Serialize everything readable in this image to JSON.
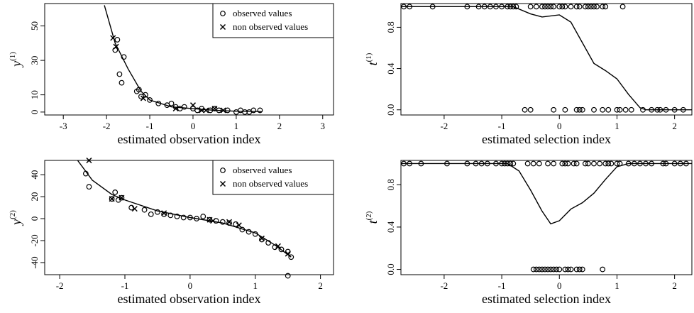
{
  "chart_data": [
    {
      "type": "scatter",
      "xlabel": "estimated observation index",
      "ylabel": "y",
      "ylabel_sup": "(1)",
      "xlim": [
        -3.43,
        3.25
      ],
      "ylim": [
        -1.7,
        63
      ],
      "xticks": [
        -3,
        -2,
        -1,
        0,
        1,
        2,
        3
      ],
      "yticks": [
        0,
        10,
        30,
        50
      ],
      "legend": "upper right",
      "series": [
        {
          "name": "observed values",
          "marker": "circle",
          "color": "#000",
          "x": [
            -1.75,
            -1.8,
            -1.6,
            -1.7,
            -1.65,
            -1.3,
            -1.25,
            -1.2,
            -1.1,
            -1.0,
            -0.8,
            -0.6,
            -0.5,
            -0.4,
            -0.3,
            -0.2,
            0,
            0.1,
            0.2,
            0.4,
            0.5,
            0.6,
            0.8,
            1.0,
            1.1,
            1.2,
            1.3,
            1.4,
            1.55
          ],
          "values": [
            42,
            36,
            32,
            22,
            17,
            12,
            13,
            9,
            10,
            7,
            5,
            4,
            5,
            3,
            2,
            3,
            2,
            1,
            2,
            1,
            2,
            1,
            1,
            0,
            1,
            0,
            0,
            1,
            1
          ]
        },
        {
          "name": "non observed values",
          "marker": "cross",
          "color": "#000",
          "x": [
            -1.85,
            -1.78,
            -1.15,
            -0.4,
            0,
            0.2,
            0.3,
            0.5,
            0.7
          ],
          "values": [
            43,
            38,
            8,
            2,
            4,
            1,
            1,
            2,
            1
          ]
        }
      ],
      "curve": {
        "color": "#000",
        "x": [
          -2.05,
          -1.8,
          -1.5,
          -1.2,
          -1.0,
          -0.5,
          0,
          0.5,
          1.0,
          1.6
        ],
        "values": [
          62,
          40,
          25,
          12,
          7,
          3,
          2,
          1,
          0.5,
          0.3
        ]
      }
    },
    {
      "type": "scatter",
      "xlabel": "estimated selection index",
      "ylabel": "t",
      "ylabel_sup": "(1)",
      "xlim": [
        -2.75,
        2.3
      ],
      "ylim": [
        -0.05,
        1.03
      ],
      "xticks": [
        -2,
        -1,
        0,
        1,
        2
      ],
      "yticks": [
        {
          "value": 0,
          "label": "0.0"
        },
        {
          "value": 0.4,
          "label": "0.4"
        },
        {
          "value": 0.8,
          "label": "0.8"
        }
      ],
      "series": [
        {
          "marker": "circle",
          "color": "#000",
          "x": [
            -2.7,
            -2.6,
            -2.2,
            -1.6,
            -1.4,
            -1.3,
            -1.2,
            -1.1,
            -1.0,
            -0.9,
            -0.85,
            -0.8,
            -0.75,
            -0.5,
            -0.4,
            -0.3,
            -0.25,
            -0.2,
            -0.15,
            -0.1,
            0,
            0.05,
            0.1,
            0.2,
            0.3,
            0.35,
            0.45,
            0.5,
            0.55,
            0.6,
            0.65,
            0.75,
            0.8,
            1.1,
            -0.6,
            -0.5,
            -0.1,
            0.1,
            0.3,
            0.35,
            0.4,
            0.6,
            0.75,
            0.85,
            1.0,
            1.05,
            1.15,
            1.25,
            1.45,
            1.6,
            1.7,
            1.75,
            1.85,
            2.0,
            2.15
          ],
          "values": [
            1,
            1,
            1,
            1,
            1,
            1,
            1,
            1,
            1,
            1,
            1,
            1,
            1,
            1,
            1,
            1,
            1,
            1,
            1,
            1,
            1,
            1,
            1,
            1,
            1,
            1,
            1,
            1,
            1,
            1,
            1,
            1,
            1,
            1,
            0,
            0,
            0,
            0,
            0,
            0,
            0,
            0,
            0,
            0,
            0,
            0,
            0,
            0,
            0,
            0,
            0,
            0,
            0,
            0,
            0
          ]
        }
      ],
      "curve": {
        "color": "#000",
        "x": [
          -2.75,
          -0.8,
          -0.5,
          -0.3,
          0,
          0.2,
          0.4,
          0.6,
          0.8,
          1.0,
          1.2,
          1.4,
          1.5,
          2.3
        ],
        "values": [
          1,
          1,
          0.93,
          0.9,
          0.92,
          0.85,
          0.65,
          0.45,
          0.38,
          0.3,
          0.15,
          0.02,
          0,
          0
        ]
      }
    },
    {
      "type": "scatter",
      "xlabel": "estimated observation index",
      "ylabel": "y",
      "ylabel_sup": "(2)",
      "xlim": [
        -2.23,
        2.2
      ],
      "ylim": [
        -51,
        53
      ],
      "xticks": [
        -2,
        -1,
        0,
        1,
        2
      ],
      "yticks": [
        -40,
        -20,
        0,
        20,
        40
      ],
      "legend": "upper right",
      "series": [
        {
          "name": "observed values",
          "marker": "circle",
          "color": "#000",
          "x": [
            -1.6,
            -1.55,
            -1.2,
            -1.15,
            -1.1,
            -1.05,
            -0.9,
            -0.7,
            -0.6,
            -0.5,
            -0.4,
            -0.3,
            -0.2,
            -0.1,
            0,
            0.1,
            0.2,
            0.3,
            0.4,
            0.5,
            0.6,
            0.7,
            0.8,
            0.9,
            1.0,
            1.1,
            1.2,
            1.3,
            1.4,
            1.5,
            1.55,
            1.5
          ],
          "values": [
            41,
            29,
            18,
            24,
            17,
            19,
            10,
            8,
            4,
            6,
            4,
            3,
            2,
            1,
            1,
            0,
            2,
            -1,
            -2,
            -3,
            -4,
            -5,
            -10,
            -12,
            -14,
            -19,
            -22,
            -26,
            -28,
            -30,
            -35,
            -52
          ]
        },
        {
          "name": "non observed values",
          "marker": "cross",
          "color": "#000",
          "x": [
            -1.55,
            -1.2,
            -1.05,
            -0.85,
            -0.4,
            0.3,
            0.35,
            0.6,
            0.75,
            1.1,
            1.35,
            1.5
          ],
          "values": [
            53,
            18,
            19,
            9,
            5,
            -1,
            -2,
            -3,
            -6,
            -18,
            -25,
            -32
          ]
        }
      ],
      "curve": {
        "color": "#000",
        "x": [
          -1.75,
          -1.5,
          -1.2,
          -1.0,
          -0.5,
          0,
          0.5,
          1.0,
          1.3,
          1.55
        ],
        "values": [
          55,
          35,
          22,
          17,
          7,
          1,
          -4,
          -13,
          -24,
          -35
        ]
      }
    },
    {
      "type": "scatter",
      "xlabel": "estimated selection index",
      "ylabel": "t",
      "ylabel_sup": "(2)",
      "xlim": [
        -2.75,
        2.3
      ],
      "ylim": [
        -0.05,
        1.03
      ],
      "xticks": [
        -2,
        -1,
        0,
        1,
        2
      ],
      "yticks": [
        {
          "value": 0,
          "label": "0.0"
        },
        {
          "value": 0.4,
          "label": "0.4"
        },
        {
          "value": 0.8,
          "label": "0.8"
        }
      ],
      "series": [
        {
          "marker": "circle",
          "color": "#000",
          "x": [
            -2.7,
            -2.6,
            -2.4,
            -1.95,
            -1.6,
            -1.45,
            -1.35,
            -1.25,
            -1.1,
            -1.0,
            -0.95,
            -0.9,
            -0.85,
            -0.8,
            -0.55,
            -0.45,
            -0.35,
            -0.2,
            -0.1,
            0.05,
            0.1,
            0.15,
            0.25,
            0.3,
            0.45,
            0.5,
            0.6,
            0.7,
            0.8,
            0.85,
            0.9,
            1.0,
            1.05,
            1.2,
            1.3,
            1.4,
            1.5,
            1.6,
            1.8,
            1.85,
            2.0,
            2.1,
            2.2,
            -0.45,
            -0.4,
            -0.35,
            -0.3,
            -0.25,
            -0.2,
            -0.15,
            -0.1,
            -0.05,
            0,
            0.1,
            0.15,
            0.2,
            0.3,
            0.35,
            0.4,
            0.75
          ],
          "values": [
            1,
            1,
            1,
            1,
            1,
            1,
            1,
            1,
            1,
            1,
            1,
            1,
            1,
            1,
            1,
            1,
            1,
            1,
            1,
            1,
            1,
            1,
            1,
            1,
            1,
            1,
            1,
            1,
            1,
            1,
            1,
            1,
            1,
            1,
            1,
            1,
            1,
            1,
            1,
            1,
            1,
            1,
            1,
            0,
            0,
            0,
            0,
            0,
            0,
            0,
            0,
            0,
            0,
            0,
            0,
            0,
            0,
            0,
            0,
            0
          ]
        }
      ],
      "curve": {
        "color": "#000",
        "x": [
          -2.75,
          -0.9,
          -0.7,
          -0.5,
          -0.3,
          -0.15,
          0,
          0.2,
          0.4,
          0.6,
          0.8,
          1.0,
          1.2,
          2.3
        ],
        "values": [
          1,
          1,
          0.93,
          0.75,
          0.55,
          0.43,
          0.46,
          0.57,
          0.63,
          0.72,
          0.85,
          0.97,
          1,
          1
        ]
      }
    }
  ]
}
